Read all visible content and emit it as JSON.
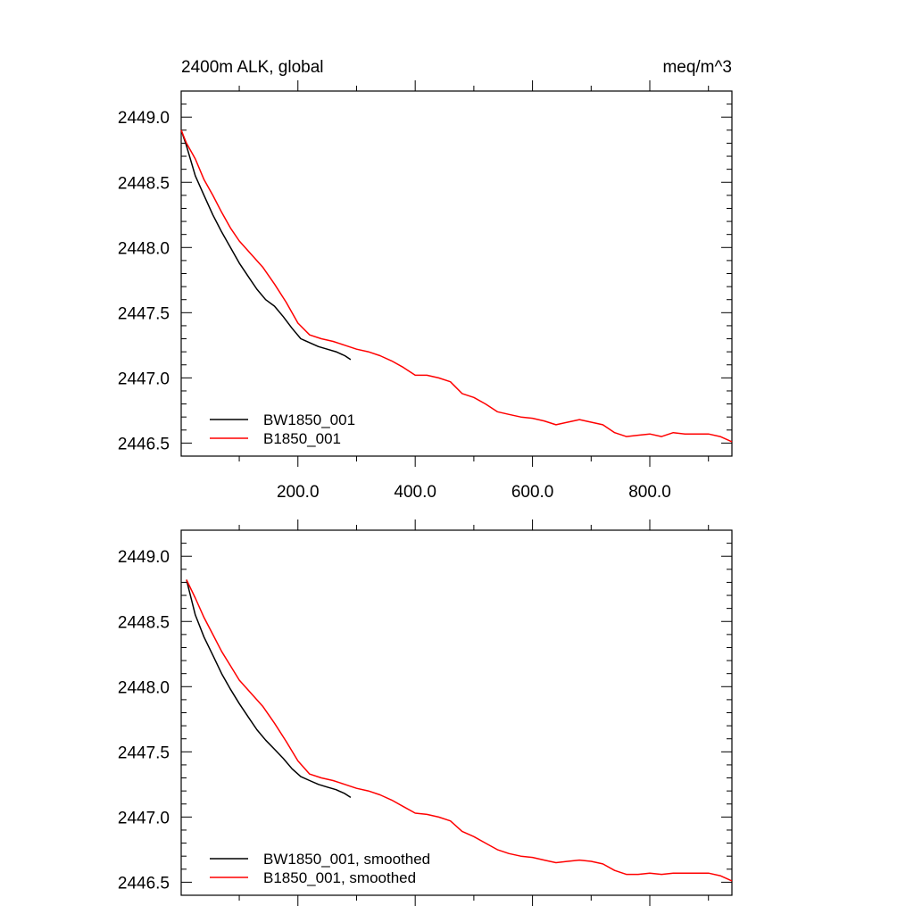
{
  "chart_data": [
    {
      "type": "line",
      "title_left": "2400m ALK, global",
      "title_right": "meq/m^3",
      "xlim": [
        1,
        940
      ],
      "ylim": [
        2446.4,
        2449.2
      ],
      "xticks": [
        200,
        400,
        600,
        800
      ],
      "xtick_labels": [
        "200.0",
        "400.0",
        "600.0",
        "800.0"
      ],
      "yticks": [
        2446.5,
        2447.0,
        2447.5,
        2448.0,
        2448.5,
        2449.0
      ],
      "ytick_labels": [
        "2446.5",
        "2447.0",
        "2447.5",
        "2448.0",
        "2448.5",
        "2449.0"
      ],
      "legend_position": "bottom-left",
      "series": [
        {
          "name": "BW1850_001",
          "color": "#000000",
          "x": [
            1,
            10,
            25,
            40,
            55,
            70,
            85,
            100,
            115,
            130,
            145,
            160,
            175,
            190,
            205,
            220,
            235,
            250,
            265,
            280,
            290
          ],
          "y": [
            2448.9,
            2448.78,
            2448.55,
            2448.4,
            2448.25,
            2448.12,
            2448.0,
            2447.88,
            2447.78,
            2447.68,
            2447.6,
            2447.55,
            2447.47,
            2447.38,
            2447.3,
            2447.27,
            2447.24,
            2447.22,
            2447.2,
            2447.17,
            2447.14
          ]
        },
        {
          "name": "B1850_001",
          "color": "#ff0000",
          "x": [
            1,
            10,
            25,
            40,
            55,
            70,
            85,
            100,
            120,
            140,
            160,
            180,
            200,
            220,
            240,
            260,
            280,
            300,
            320,
            340,
            360,
            380,
            400,
            420,
            440,
            460,
            480,
            500,
            520,
            540,
            560,
            580,
            600,
            620,
            640,
            660,
            680,
            700,
            720,
            740,
            760,
            780,
            800,
            820,
            840,
            860,
            880,
            900,
            920,
            940
          ],
          "y": [
            2448.9,
            2448.8,
            2448.68,
            2448.52,
            2448.4,
            2448.27,
            2448.15,
            2448.05,
            2447.95,
            2447.85,
            2447.72,
            2447.58,
            2447.42,
            2447.33,
            2447.3,
            2447.28,
            2447.25,
            2447.22,
            2447.2,
            2447.17,
            2447.13,
            2447.08,
            2447.02,
            2447.02,
            2447.0,
            2446.97,
            2446.88,
            2446.85,
            2446.8,
            2446.74,
            2446.72,
            2446.7,
            2446.69,
            2446.67,
            2446.64,
            2446.66,
            2446.68,
            2446.66,
            2446.64,
            2446.58,
            2446.55,
            2446.56,
            2446.57,
            2446.55,
            2446.58,
            2446.57,
            2446.57,
            2446.57,
            2446.55,
            2446.51
          ]
        }
      ]
    },
    {
      "type": "line",
      "xlim": [
        1,
        940
      ],
      "ylim": [
        2446.4,
        2449.2
      ],
      "xticks": [
        200,
        400,
        600,
        800
      ],
      "yticks": [
        2446.5,
        2447.0,
        2447.5,
        2448.0,
        2448.5,
        2449.0
      ],
      "ytick_labels": [
        "2446.5",
        "2447.0",
        "2447.5",
        "2448.0",
        "2448.5",
        "2449.0"
      ],
      "legend_position": "bottom-left",
      "series": [
        {
          "name": "BW1850_001, smoothed",
          "color": "#000000",
          "x": [
            10,
            25,
            40,
            55,
            70,
            85,
            100,
            115,
            130,
            145,
            160,
            175,
            190,
            205,
            220,
            235,
            250,
            265,
            280,
            290
          ],
          "y": [
            2448.82,
            2448.55,
            2448.38,
            2448.24,
            2448.1,
            2447.98,
            2447.87,
            2447.77,
            2447.67,
            2447.59,
            2447.52,
            2447.45,
            2447.37,
            2447.31,
            2447.28,
            2447.25,
            2447.23,
            2447.21,
            2447.18,
            2447.15
          ]
        },
        {
          "name": "B1850_001, smoothed",
          "color": "#ff0000",
          "x": [
            10,
            25,
            40,
            55,
            70,
            85,
            100,
            120,
            140,
            160,
            180,
            200,
            220,
            240,
            260,
            280,
            300,
            320,
            340,
            360,
            380,
            400,
            420,
            440,
            460,
            480,
            500,
            520,
            540,
            560,
            580,
            600,
            620,
            640,
            660,
            680,
            700,
            720,
            740,
            760,
            780,
            800,
            820,
            840,
            860,
            880,
            900,
            920,
            940
          ],
          "y": [
            2448.82,
            2448.68,
            2448.53,
            2448.4,
            2448.27,
            2448.16,
            2448.05,
            2447.95,
            2447.85,
            2447.72,
            2447.58,
            2447.43,
            2447.33,
            2447.3,
            2447.28,
            2447.25,
            2447.22,
            2447.2,
            2447.17,
            2447.13,
            2447.08,
            2447.03,
            2447.02,
            2447.0,
            2446.97,
            2446.89,
            2446.85,
            2446.8,
            2446.75,
            2446.72,
            2446.7,
            2446.69,
            2446.67,
            2446.65,
            2446.66,
            2446.67,
            2446.66,
            2446.64,
            2446.59,
            2446.56,
            2446.56,
            2446.57,
            2446.56,
            2446.57,
            2446.57,
            2446.57,
            2446.57,
            2446.55,
            2446.51
          ]
        }
      ]
    }
  ]
}
